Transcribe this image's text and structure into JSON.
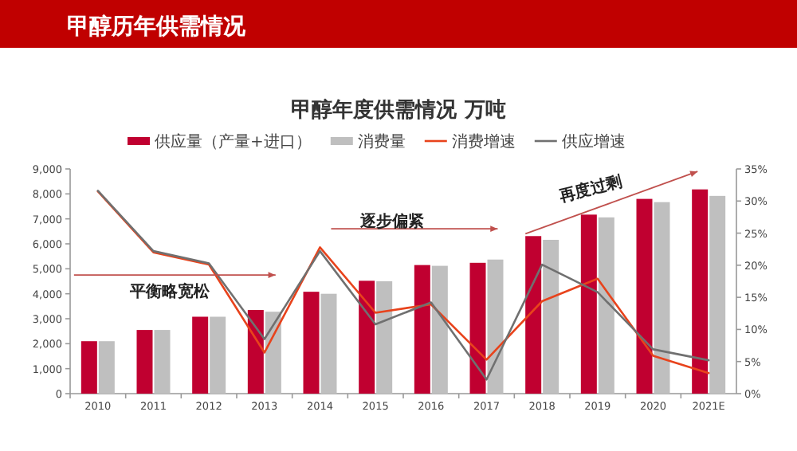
{
  "chart_data": {
    "type": "bar",
    "title": "甲醇历年供需情况",
    "subtitle": "甲醇年度供需情况 万吨",
    "categories": [
      "2010",
      "2011",
      "2012",
      "2013",
      "2014",
      "2015",
      "2016",
      "2017",
      "2018",
      "2019",
      "2020",
      "2021E"
    ],
    "series": [
      {
        "name": "供应量（产量+进口）",
        "color": "#c00030",
        "values": [
          2100,
          2550,
          3080,
          3350,
          4080,
          4520,
          5150,
          5240,
          6310,
          7170,
          7800,
          8180
        ]
      },
      {
        "name": "消费量",
        "color": "#bfbfbf",
        "values": [
          2100,
          2550,
          3080,
          3280,
          4000,
          4500,
          5120,
          5370,
          6160,
          7060,
          7670,
          7920
        ]
      },
      {
        "name": "消费增速",
        "type": "line",
        "axis": "y2",
        "color": "#e8431c",
        "values": [
          31.5,
          22.0,
          20.1,
          6.4,
          22.8,
          12.6,
          13.9,
          5.3,
          14.4,
          17.9,
          5.9,
          3.2
        ]
      },
      {
        "name": "供应增速",
        "type": "line",
        "axis": "y2",
        "color": "#707070",
        "values": [
          31.6,
          22.2,
          20.3,
          8.5,
          22.2,
          10.8,
          14.2,
          2.2,
          20.1,
          15.8,
          6.9,
          5.2
        ]
      }
    ],
    "ylim": [
      0,
      9000
    ],
    "yticks": [
      0,
      {
        "value": 1000,
        "label": "1,000"
      },
      {
        "value": 2000,
        "label": "2,000"
      },
      {
        "value": 3000,
        "label": "3,000"
      },
      {
        "value": 4000,
        "label": "4,000"
      },
      {
        "value": 5000,
        "label": "5,000"
      },
      {
        "value": 6000,
        "label": "6,000"
      },
      {
        "value": 7000,
        "label": "7,000"
      },
      {
        "value": 8000,
        "label": "8,000"
      },
      {
        "value": 9000,
        "label": "9,000"
      }
    ],
    "y2lim": [
      0,
      35
    ],
    "y2ticks": [
      {
        "value": 0,
        "label": "0%"
      },
      {
        "value": 5,
        "label": "5%"
      },
      {
        "value": 10,
        "label": "10%"
      },
      {
        "value": 15,
        "label": "15%"
      },
      {
        "value": 20,
        "label": "20%"
      },
      {
        "value": 25,
        "label": "25%"
      },
      {
        "value": 30,
        "label": "30%"
      },
      {
        "value": 35,
        "label": "35%"
      }
    ],
    "annotations": [
      "平衡略宽松",
      "逐步偏紧",
      "再度过剩"
    ],
    "legend": "top",
    "grid": false,
    "marker": "none",
    "line_style": "solid"
  }
}
